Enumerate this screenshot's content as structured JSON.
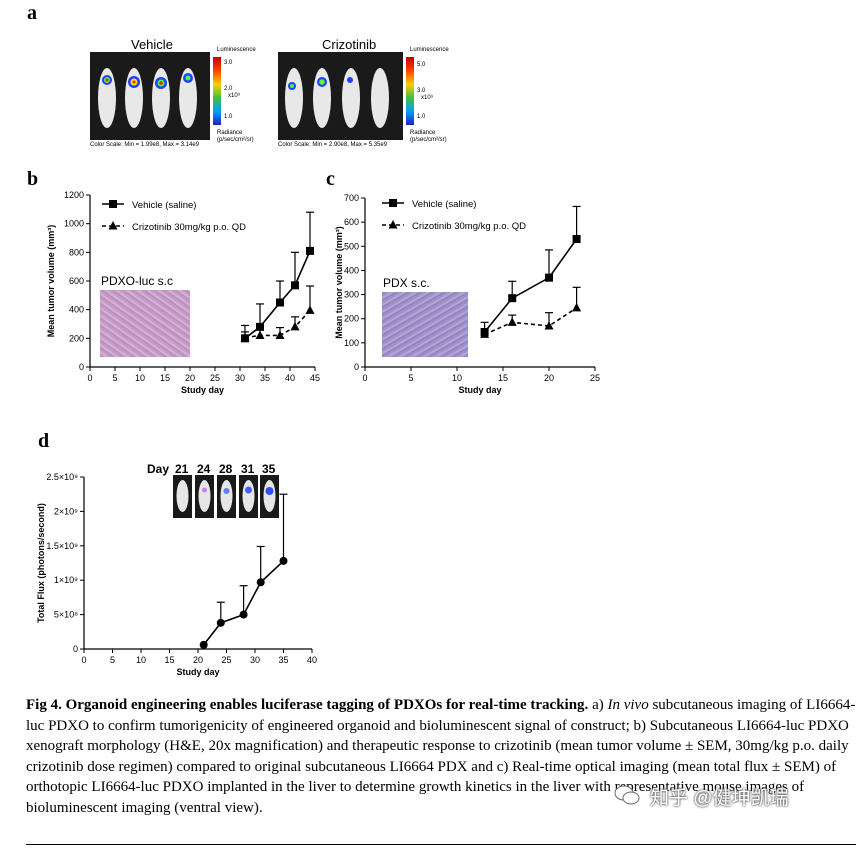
{
  "panel_labels": {
    "a": "a",
    "b": "b",
    "c": "c",
    "d": "d"
  },
  "panel_a": {
    "vehicle": {
      "title": "Vehicle",
      "scale_title": "Luminescence",
      "ticks": [
        "3.0",
        "2.0",
        "1.0"
      ],
      "exponent": "x10⁹",
      "unit_line1": "Radiance",
      "unit_line2": "(p/sec/cm²/sr)",
      "color_scale": "Color Scale: Min = 1.99e8, Max = 3.14e9"
    },
    "crizotinib": {
      "title": "Crizotinib",
      "scale_title": "Luminescence",
      "ticks": [
        "5.0",
        "3.0",
        "1.0"
      ],
      "exponent": "x10⁹",
      "unit_line1": "Radiance",
      "unit_line2": "(p/sec/cm²/sr)",
      "color_scale": "Color Scale: Min = 2.90e8, Max = 5.35e9"
    }
  },
  "inset_b": "PDXO-luc s.c",
  "inset_c": "PDX s.c.",
  "panel_d_header": {
    "label": "Day",
    "days": [
      "21",
      "24",
      "28",
      "31",
      "35"
    ]
  },
  "chart_data": [
    {
      "id": "b",
      "type": "line",
      "xlabel": "Study day",
      "ylabel": "Mean tumor volume (mm³)",
      "xlim": [
        0,
        45
      ],
      "ylim": [
        0,
        1200
      ],
      "xticks": [
        0,
        5,
        10,
        15,
        20,
        25,
        30,
        35,
        40,
        45
      ],
      "yticks": [
        0,
        200,
        400,
        600,
        800,
        1000,
        1200
      ],
      "legend_position": "top-left",
      "series": [
        {
          "name": "Vehicle (saline)",
          "marker": "square",
          "dash": false,
          "x": [
            31,
            34,
            38,
            41,
            44
          ],
          "y": [
            200,
            280,
            450,
            570,
            810
          ],
          "err": [
            90,
            160,
            150,
            230,
            270
          ]
        },
        {
          "name": "Crizotinib 30mg/kg p.o. QD",
          "marker": "triangle",
          "dash": true,
          "x": [
            31,
            34,
            38,
            41,
            44
          ],
          "y": [
            205,
            220,
            220,
            280,
            395
          ],
          "err": [
            40,
            50,
            55,
            70,
            170
          ]
        }
      ]
    },
    {
      "id": "c",
      "type": "line",
      "xlabel": "Study day",
      "ylabel": "Mean tumor volume (mm³)",
      "xlim": [
        0,
        25
      ],
      "ylim": [
        0,
        700
      ],
      "xticks": [
        0,
        5,
        10,
        15,
        20,
        25
      ],
      "yticks": [
        0,
        100,
        200,
        300,
        400,
        500,
        600,
        700
      ],
      "legend_position": "top-left",
      "series": [
        {
          "name": "Vehicle (saline)",
          "marker": "square",
          "dash": false,
          "x": [
            13,
            16,
            20,
            23
          ],
          "y": [
            145,
            285,
            370,
            530
          ],
          "err": [
            40,
            70,
            115,
            135
          ]
        },
        {
          "name": "Crizotinib 30mg/kg p.o. QD",
          "marker": "triangle",
          "dash": true,
          "x": [
            13,
            16,
            20,
            23
          ],
          "y": [
            135,
            185,
            170,
            245
          ],
          "err": [
            20,
            30,
            55,
            85
          ]
        }
      ]
    },
    {
      "id": "d",
      "type": "line",
      "xlabel": "Study day",
      "ylabel": "Total Flux (photons/second)",
      "xlim": [
        0,
        40
      ],
      "ylim": [
        0,
        2500000000
      ],
      "xticks": [
        0,
        5,
        10,
        15,
        20,
        25,
        30,
        35,
        40
      ],
      "yticks": [
        0,
        500000000,
        1000000000,
        1500000000,
        2000000000,
        2500000000
      ],
      "ytick_labels": [
        "0",
        "5×10⁸",
        "1×10⁹",
        "1.5×10⁹",
        "2×10⁹",
        "2.5×10⁹"
      ],
      "series": [
        {
          "name": "Total flux",
          "marker": "circle",
          "dash": false,
          "x": [
            21,
            24,
            28,
            31,
            35
          ],
          "y": [
            60000000,
            380000000,
            500000000,
            970000000,
            1280000000
          ],
          "err": [
            0,
            300000000,
            420000000,
            520000000,
            970000000
          ]
        }
      ]
    }
  ],
  "caption": {
    "fig": "Fig 4.",
    "title": "Organoid engineering enables luciferase tagging of PDXOs for real-time tracking.",
    "a_prefix": "a)",
    "a_italic": "In vivo",
    "text": "subcutaneous imaging of LI6664-luc PDXO to confirm tumorigenicity of engineered organoid and bioluminescent signal of construct; b) Subcutaneous LI6664-luc PDXO xenograft morphology (H&E, 20x magnification) and therapeutic response to crizotinib (mean tumor volume ± SEM, 30mg/kg p.o. daily crizotinib dose regimen) compared to original subcutaneous LI6664 PDX and c) Real-time optical imaging (mean total flux ± SEM) of orthotopic LI6664-luc PDXO implanted in the liver to determine growth kinetics in the liver with representative mouse images of bioluminescent imaging (ventral view)."
  },
  "watermark": "知乎 @健坤凯瑞"
}
